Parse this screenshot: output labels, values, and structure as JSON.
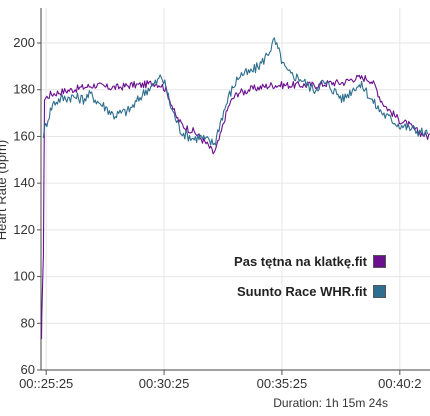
{
  "chart_data": {
    "type": "line",
    "ylabel": "Heart Rate (bpm)",
    "ylim": [
      60,
      215
    ],
    "xlim_min": [
      25.2,
      41.7
    ],
    "yticks": [
      60,
      80,
      100,
      120,
      140,
      160,
      180,
      200
    ],
    "xticks": [
      {
        "min": 25.42,
        "label": "00::25:25"
      },
      {
        "min": 30.42,
        "label": "00:30:25"
      },
      {
        "min": 35.42,
        "label": "00:35:25"
      },
      {
        "min": 40.42,
        "label": "00:40:2"
      }
    ],
    "grid": true,
    "legend_position": "bottom-right",
    "series": [
      {
        "name": "Pas tętna na klatkę.fit",
        "color": "#6a0f8e",
        "points": [
          [
            25.22,
            72
          ],
          [
            25.25,
            92
          ],
          [
            25.3,
            108
          ],
          [
            25.35,
            176
          ],
          [
            25.6,
            178
          ],
          [
            26.0,
            179
          ],
          [
            26.5,
            180
          ],
          [
            27.0,
            181
          ],
          [
            27.5,
            182
          ],
          [
            28.0,
            181
          ],
          [
            28.5,
            181
          ],
          [
            29.0,
            182
          ],
          [
            29.5,
            182
          ],
          [
            30.0,
            183
          ],
          [
            30.3,
            182
          ],
          [
            30.5,
            180
          ],
          [
            30.7,
            175
          ],
          [
            30.9,
            169
          ],
          [
            31.1,
            166
          ],
          [
            31.3,
            164
          ],
          [
            31.5,
            163
          ],
          [
            31.7,
            162
          ],
          [
            31.9,
            160
          ],
          [
            32.1,
            158
          ],
          [
            32.3,
            156
          ],
          [
            32.5,
            153
          ],
          [
            32.6,
            154
          ],
          [
            32.8,
            160
          ],
          [
            33.0,
            168
          ],
          [
            33.2,
            174
          ],
          [
            33.4,
            177
          ],
          [
            33.6,
            179
          ],
          [
            33.8,
            179
          ],
          [
            34.0,
            180
          ],
          [
            34.5,
            181
          ],
          [
            35.0,
            182
          ],
          [
            35.5,
            182
          ],
          [
            36.0,
            182
          ],
          [
            36.5,
            182
          ],
          [
            37.0,
            182
          ],
          [
            37.5,
            183
          ],
          [
            38.0,
            183
          ],
          [
            38.5,
            185
          ],
          [
            39.0,
            185
          ],
          [
            39.2,
            184
          ],
          [
            39.4,
            181
          ],
          [
            39.6,
            176
          ],
          [
            39.8,
            173
          ],
          [
            40.0,
            171
          ],
          [
            40.2,
            169
          ],
          [
            40.4,
            167
          ],
          [
            40.6,
            166
          ],
          [
            40.8,
            165
          ],
          [
            41.0,
            163
          ],
          [
            41.2,
            162
          ],
          [
            41.4,
            161
          ],
          [
            41.6,
            160
          ],
          [
            41.7,
            161
          ]
        ]
      },
      {
        "name": "Suunto Race WHR.fit",
        "color": "#2e6e8e",
        "points": [
          [
            25.3,
            161
          ],
          [
            25.5,
            168
          ],
          [
            25.7,
            174
          ],
          [
            26.0,
            176
          ],
          [
            26.5,
            177
          ],
          [
            27.0,
            176
          ],
          [
            27.3,
            178
          ],
          [
            27.6,
            175
          ],
          [
            28.0,
            172
          ],
          [
            28.3,
            169
          ],
          [
            28.6,
            170
          ],
          [
            28.9,
            171
          ],
          [
            29.2,
            174
          ],
          [
            29.5,
            178
          ],
          [
            29.8,
            181
          ],
          [
            30.1,
            183
          ],
          [
            30.3,
            186
          ],
          [
            30.5,
            181
          ],
          [
            30.7,
            173
          ],
          [
            30.9,
            168
          ],
          [
            31.1,
            163
          ],
          [
            31.3,
            161
          ],
          [
            31.5,
            160
          ],
          [
            31.7,
            159
          ],
          [
            31.9,
            160
          ],
          [
            32.1,
            159
          ],
          [
            32.3,
            158
          ],
          [
            32.5,
            157
          ],
          [
            32.6,
            158
          ],
          [
            32.8,
            166
          ],
          [
            33.0,
            172
          ],
          [
            33.2,
            178
          ],
          [
            33.4,
            182
          ],
          [
            33.6,
            186
          ],
          [
            33.8,
            187
          ],
          [
            34.0,
            187
          ],
          [
            34.3,
            189
          ],
          [
            34.6,
            192
          ],
          [
            34.9,
            197
          ],
          [
            35.1,
            201
          ],
          [
            35.3,
            196
          ],
          [
            35.5,
            190
          ],
          [
            35.7,
            187
          ],
          [
            35.9,
            186
          ],
          [
            36.2,
            185
          ],
          [
            36.5,
            182
          ],
          [
            36.8,
            180
          ],
          [
            37.1,
            183
          ],
          [
            37.4,
            182
          ],
          [
            37.7,
            179
          ],
          [
            38.0,
            176
          ],
          [
            38.3,
            179
          ],
          [
            38.6,
            182
          ],
          [
            38.9,
            181
          ],
          [
            39.2,
            176
          ],
          [
            39.5,
            172
          ],
          [
            39.8,
            169
          ],
          [
            40.1,
            167
          ],
          [
            40.4,
            165
          ],
          [
            40.7,
            164
          ],
          [
            41.0,
            163
          ],
          [
            41.3,
            162
          ],
          [
            41.6,
            161
          ]
        ]
      }
    ],
    "duration": "Duration: 1h 15m 24s"
  }
}
